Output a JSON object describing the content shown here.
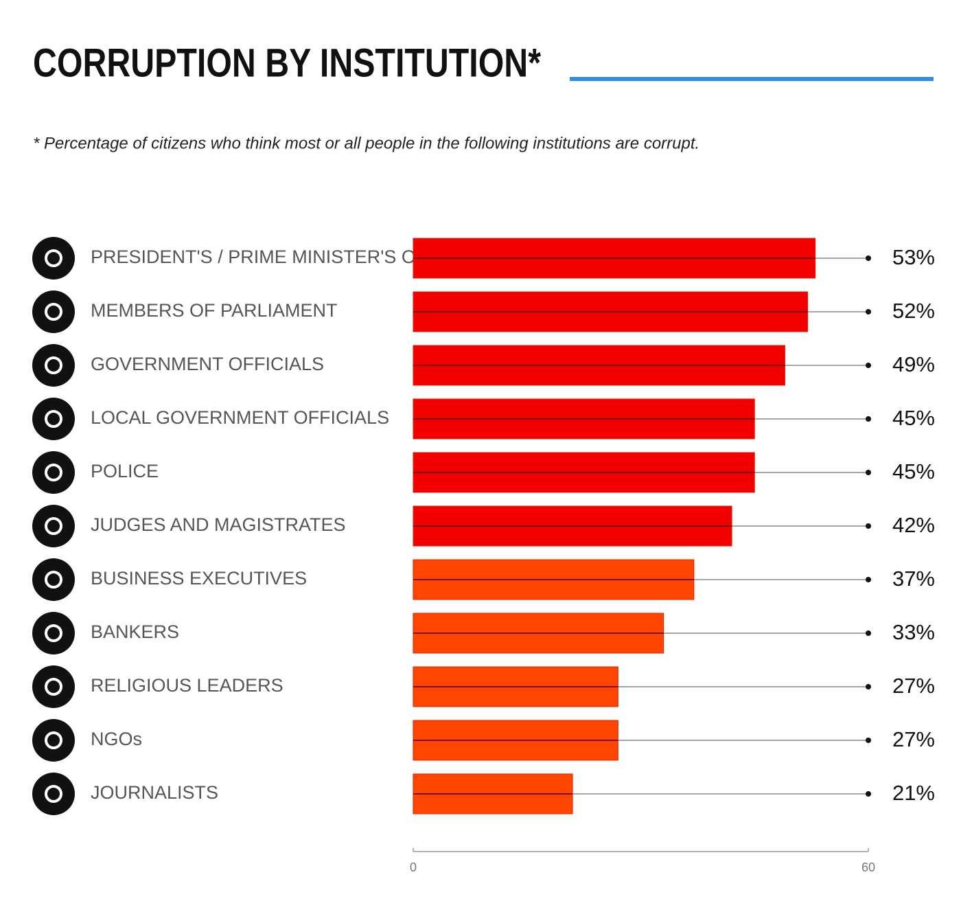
{
  "chart_data": {
    "type": "bar",
    "orientation": "horizontal",
    "title": "CORRUPTION BY INSTITUTION*",
    "subtitle": "* Percentage of citizens who think most or all people in the following institutions are corrupt.",
    "categories": [
      "PRESIDENT'S / PRIME MINISTER'S OFFICE",
      "MEMBERS OF PARLIAMENT",
      "GOVERNMENT OFFICIALS",
      "LOCAL GOVERNMENT OFFICIALS",
      "POLICE",
      "JUDGES AND MAGISTRATES",
      "BUSINESS EXECUTIVES",
      "BANKERS",
      "RELIGIOUS LEADERS",
      "NGOs",
      "JOURNALISTS"
    ],
    "values": [
      53,
      52,
      49,
      45,
      45,
      42,
      37,
      33,
      27,
      27,
      21
    ],
    "value_labels": [
      "53%",
      "52%",
      "49%",
      "45%",
      "45%",
      "42%",
      "37%",
      "33%",
      "27%",
      "27%",
      "21%"
    ],
    "colors": [
      "#f20000",
      "#f20000",
      "#f20000",
      "#f20000",
      "#f20000",
      "#f20000",
      "#ff4500",
      "#ff4500",
      "#ff4500",
      "#ff4500",
      "#ff4500"
    ],
    "xlim": [
      0,
      60
    ],
    "xticks": [
      0,
      60
    ]
  }
}
